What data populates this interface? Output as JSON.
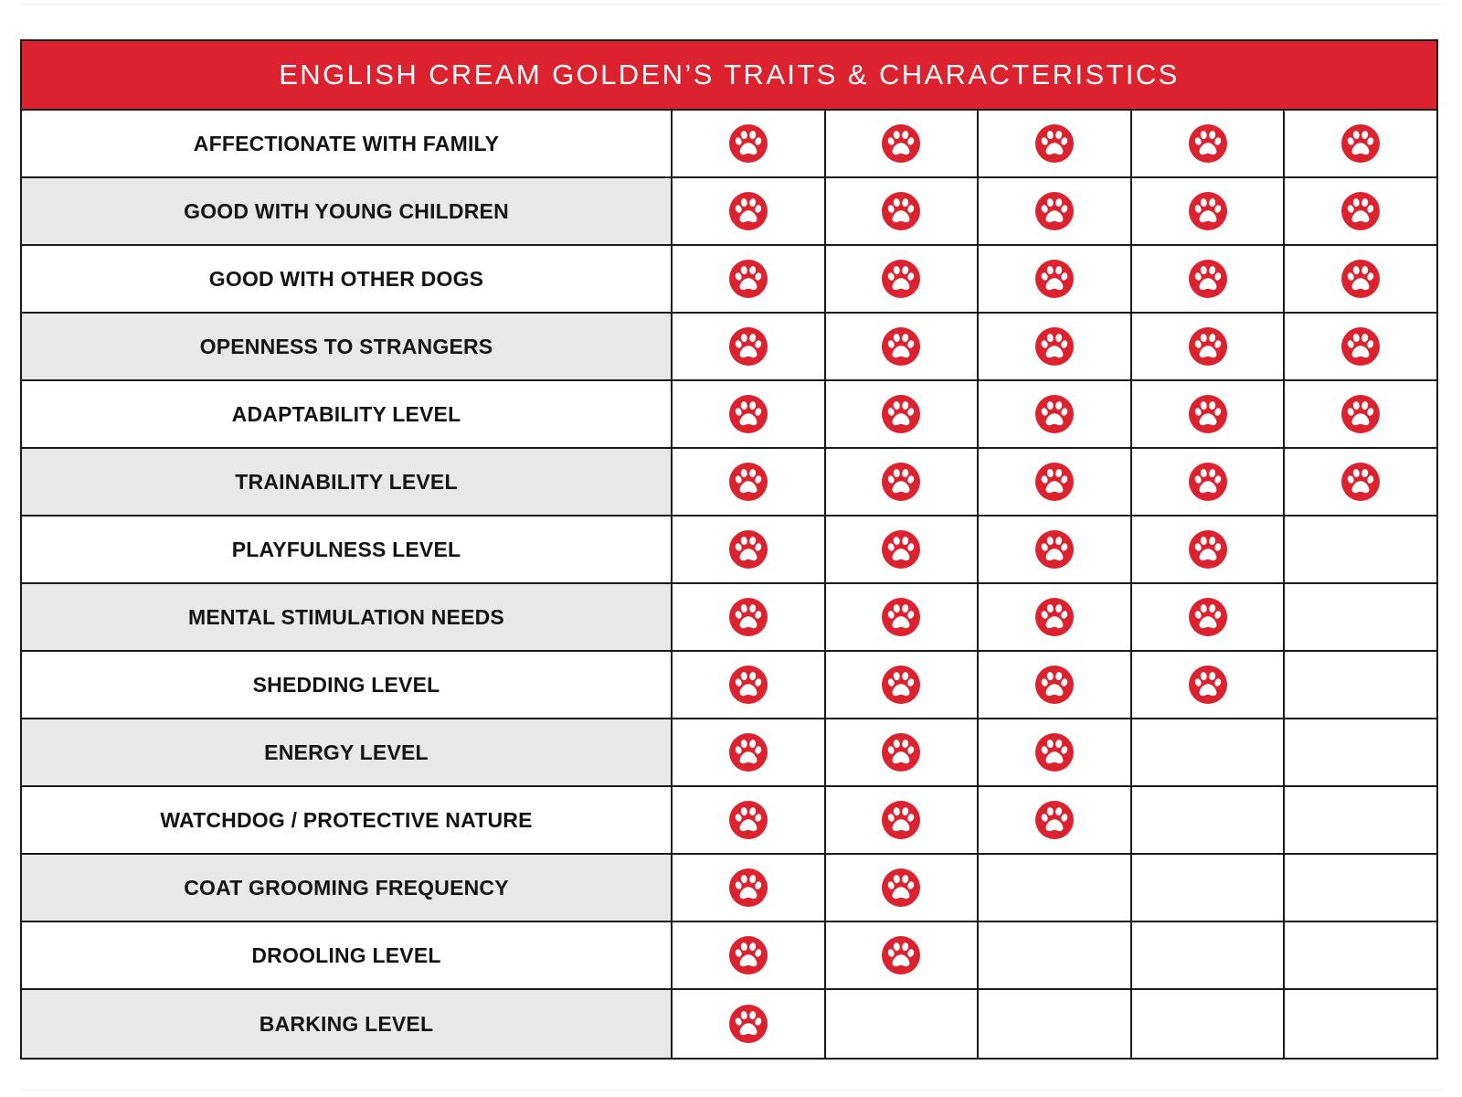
{
  "title": "ENGLISH CREAM GOLDEN’S TRAITS & CHARACTERISTICS",
  "max_rating": 5,
  "rating_icon": "paw-icon",
  "colors": {
    "accent": "#dc222e",
    "shaded_row": "#e8e8e8",
    "border": "#1a1a1a",
    "title_text": "#ffffff"
  },
  "traits": [
    {
      "label": "AFFECTIONATE WITH FAMILY",
      "rating": 5
    },
    {
      "label": "GOOD WITH YOUNG CHILDREN",
      "rating": 5
    },
    {
      "label": "GOOD WITH OTHER DOGS",
      "rating": 5
    },
    {
      "label": "OPENNESS TO STRANGERS",
      "rating": 5
    },
    {
      "label": "ADAPTABILITY LEVEL",
      "rating": 5
    },
    {
      "label": "TRAINABILITY LEVEL",
      "rating": 5
    },
    {
      "label": "PLAYFULNESS LEVEL",
      "rating": 4
    },
    {
      "label": "MENTAL STIMULATION NEEDS",
      "rating": 4
    },
    {
      "label": "SHEDDING LEVEL",
      "rating": 4
    },
    {
      "label": "ENERGY LEVEL",
      "rating": 3
    },
    {
      "label": "WATCHDOG / PROTECTIVE NATURE",
      "rating": 3
    },
    {
      "label": "COAT GROOMING FREQUENCY",
      "rating": 2
    },
    {
      "label": "DROOLING LEVEL",
      "rating": 2
    },
    {
      "label": "BARKING LEVEL",
      "rating": 1
    }
  ]
}
